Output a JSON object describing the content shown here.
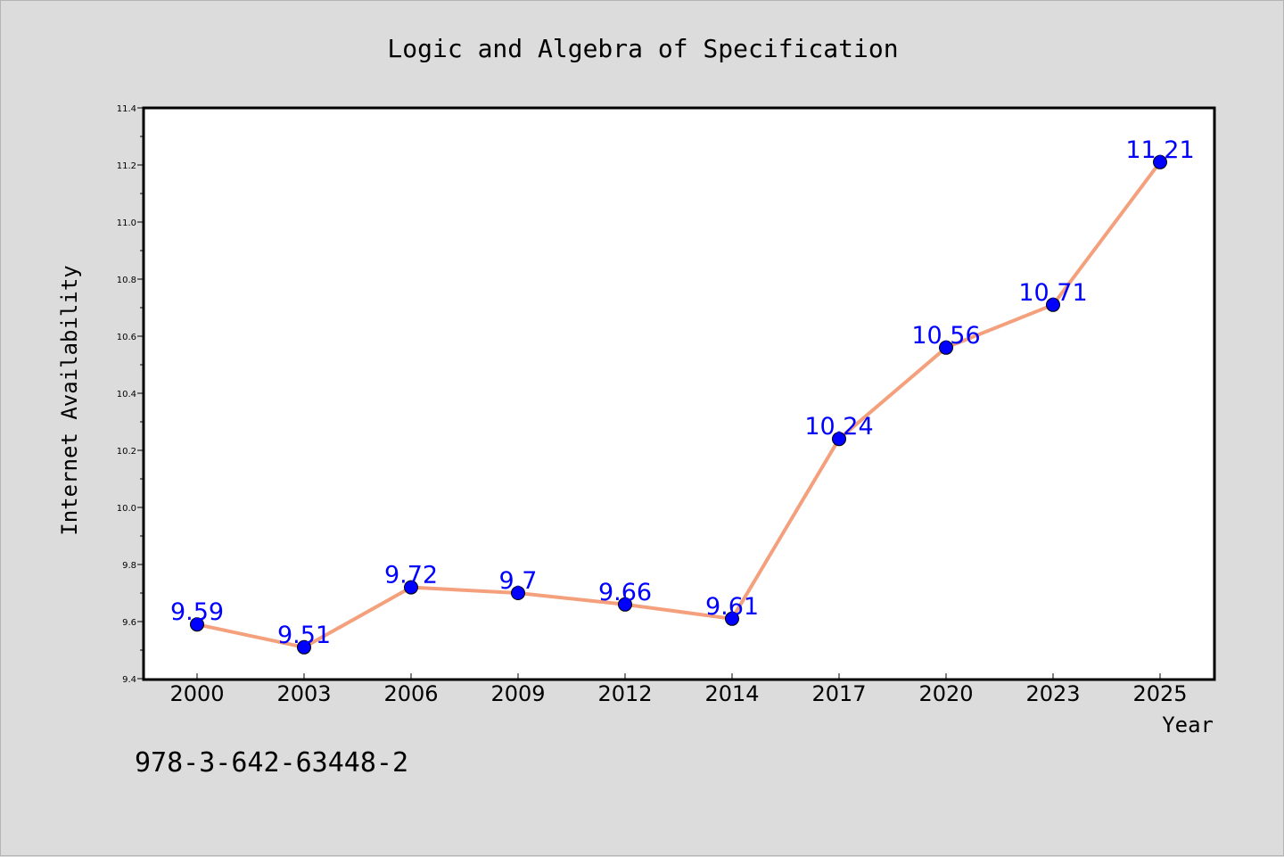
{
  "chart_data": {
    "type": "line",
    "title": "Logic and Algebra of Specification",
    "xlabel": "Year",
    "ylabel": "Internet Availability",
    "categories": [
      "2000",
      "2003",
      "2006",
      "2009",
      "2012",
      "2014",
      "2017",
      "2020",
      "2023",
      "2025"
    ],
    "series": [
      {
        "values": [
          9.59,
          9.51,
          9.72,
          9.7,
          9.66,
          9.61,
          10.24,
          10.56,
          10.71,
          11.21
        ],
        "labels": [
          "9.59",
          "9.51",
          "9.72",
          "9.7",
          "9.66",
          "9.61",
          "10.24",
          "10.56",
          "10.71",
          "11.21"
        ]
      }
    ],
    "ylim": [
      9.4,
      11.4
    ],
    "yticks": [
      "9.4",
      "9.6",
      "9.8",
      "10.0",
      "10.2",
      "10.4",
      "10.6",
      "10.8",
      "11.0",
      "11.2",
      "11.4"
    ],
    "grid": false,
    "line_color": "#f4a07c",
    "marker_color": "#0000ff"
  },
  "annotation": "978-3-642-63448-2"
}
